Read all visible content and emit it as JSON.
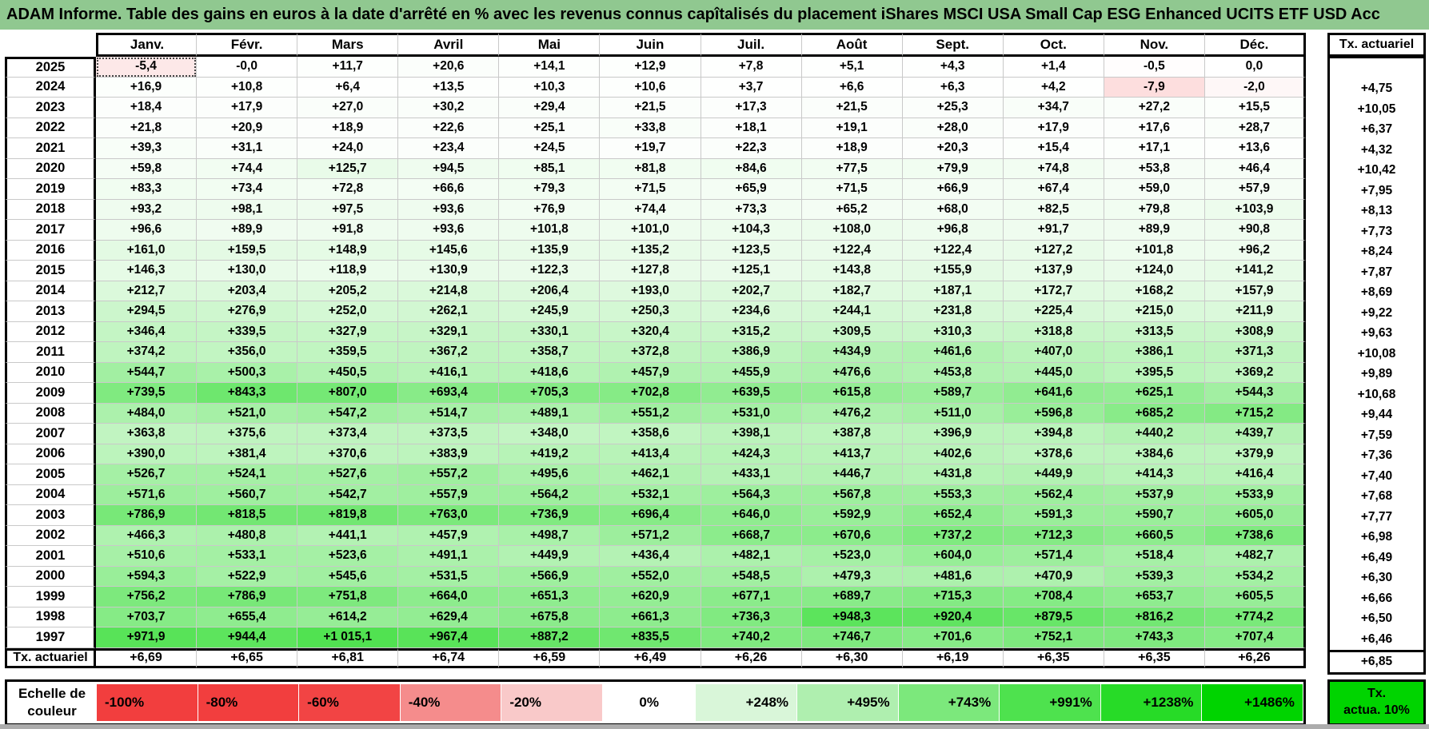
{
  "title": "ADAM Informe. Table des gains en euros à la date d'arrêté en % avec les revenus connus capîtalisés du placement iShares MSCI USA Small Cap ESG Enhanced UCITS ETF USD Acc",
  "colors": {
    "title_bg": "#90C890",
    "grid_line": "#C9C9C9",
    "negative_full": "#F23E3E",
    "positive_full": "#00D400"
  },
  "chart_data": {
    "type": "heatmap",
    "title": "ADAM Informe. Table des gains en euros à la date d'arrêté en % avec les revenus connus capîtalisés du placement iShares MSCI USA Small Cap ESG Enhanced UCITS ETF USD Acc",
    "x_labels": [
      "Janv.",
      "Févr.",
      "Mars",
      "Avril",
      "Mai",
      "Juin",
      "Juil.",
      "Août",
      "Sept.",
      "Oct.",
      "Nov.",
      "Déc."
    ],
    "extra_column_header": "Tx. actuariel",
    "tx_row_label": "Tx. actuariel",
    "selected_cell": {
      "row": "2025",
      "col": "Janv."
    },
    "rows": [
      {
        "label": "2025",
        "values": [
          "-5,4",
          "-0,0",
          "+11,7",
          "+20,6",
          "+14,1",
          "+12,9",
          "+7,8",
          "+5,1",
          "+4,3",
          "+1,4",
          "-0,5",
          "0,0"
        ],
        "tx": ""
      },
      {
        "label": "2024",
        "values": [
          "+16,9",
          "+10,8",
          "+6,4",
          "+13,5",
          "+10,3",
          "+10,6",
          "+3,7",
          "+6,6",
          "+6,3",
          "+4,2",
          "-7,9",
          "-2,0"
        ],
        "tx": "+4,75"
      },
      {
        "label": "2023",
        "values": [
          "+18,4",
          "+17,9",
          "+27,0",
          "+30,2",
          "+29,4",
          "+21,5",
          "+17,3",
          "+21,5",
          "+25,3",
          "+34,7",
          "+27,2",
          "+15,5"
        ],
        "tx": "+10,05"
      },
      {
        "label": "2022",
        "values": [
          "+21,8",
          "+20,9",
          "+18,9",
          "+22,6",
          "+25,1",
          "+33,8",
          "+18,1",
          "+19,1",
          "+28,0",
          "+17,9",
          "+17,6",
          "+28,7"
        ],
        "tx": "+6,37"
      },
      {
        "label": "2021",
        "values": [
          "+39,3",
          "+31,1",
          "+24,0",
          "+23,4",
          "+24,5",
          "+19,7",
          "+22,3",
          "+18,9",
          "+20,3",
          "+15,4",
          "+17,1",
          "+13,6"
        ],
        "tx": "+4,32"
      },
      {
        "label": "2020",
        "values": [
          "+59,8",
          "+74,4",
          "+125,7",
          "+94,5",
          "+85,1",
          "+81,8",
          "+84,6",
          "+77,5",
          "+79,9",
          "+74,8",
          "+53,8",
          "+46,4"
        ],
        "tx": "+10,42"
      },
      {
        "label": "2019",
        "values": [
          "+83,3",
          "+73,4",
          "+72,8",
          "+66,6",
          "+79,3",
          "+71,5",
          "+65,9",
          "+71,5",
          "+66,9",
          "+67,4",
          "+59,0",
          "+57,9"
        ],
        "tx": "+7,95"
      },
      {
        "label": "2018",
        "values": [
          "+93,2",
          "+98,1",
          "+97,5",
          "+93,6",
          "+76,9",
          "+74,4",
          "+73,3",
          "+65,2",
          "+68,0",
          "+82,5",
          "+79,8",
          "+103,9"
        ],
        "tx": "+8,13"
      },
      {
        "label": "2017",
        "values": [
          "+96,6",
          "+89,9",
          "+91,8",
          "+93,6",
          "+101,8",
          "+101,0",
          "+104,3",
          "+108,0",
          "+96,8",
          "+91,7",
          "+89,9",
          "+90,8"
        ],
        "tx": "+7,73"
      },
      {
        "label": "2016",
        "values": [
          "+161,0",
          "+159,5",
          "+148,9",
          "+145,6",
          "+135,9",
          "+135,2",
          "+123,5",
          "+122,4",
          "+122,4",
          "+127,2",
          "+101,8",
          "+96,2"
        ],
        "tx": "+8,24"
      },
      {
        "label": "2015",
        "values": [
          "+146,3",
          "+130,0",
          "+118,9",
          "+130,9",
          "+122,3",
          "+127,8",
          "+125,1",
          "+143,8",
          "+155,9",
          "+137,9",
          "+124,0",
          "+141,2"
        ],
        "tx": "+7,87"
      },
      {
        "label": "2014",
        "values": [
          "+212,7",
          "+203,4",
          "+205,2",
          "+214,8",
          "+206,4",
          "+193,0",
          "+202,7",
          "+182,7",
          "+187,1",
          "+172,7",
          "+168,2",
          "+157,9"
        ],
        "tx": "+8,69"
      },
      {
        "label": "2013",
        "values": [
          "+294,5",
          "+276,9",
          "+252,0",
          "+262,1",
          "+245,9",
          "+250,3",
          "+234,6",
          "+244,1",
          "+231,8",
          "+225,4",
          "+215,0",
          "+211,9"
        ],
        "tx": "+9,22"
      },
      {
        "label": "2012",
        "values": [
          "+346,4",
          "+339,5",
          "+327,9",
          "+329,1",
          "+330,1",
          "+320,4",
          "+315,2",
          "+309,5",
          "+310,3",
          "+318,8",
          "+313,5",
          "+308,9"
        ],
        "tx": "+9,63"
      },
      {
        "label": "2011",
        "values": [
          "+374,2",
          "+356,0",
          "+359,5",
          "+367,2",
          "+358,7",
          "+372,8",
          "+386,9",
          "+434,9",
          "+461,6",
          "+407,0",
          "+386,1",
          "+371,3"
        ],
        "tx": "+10,08"
      },
      {
        "label": "2010",
        "values": [
          "+544,7",
          "+500,3",
          "+450,5",
          "+416,1",
          "+418,6",
          "+457,9",
          "+455,9",
          "+476,6",
          "+453,8",
          "+445,0",
          "+395,5",
          "+369,2"
        ],
        "tx": "+9,89"
      },
      {
        "label": "2009",
        "values": [
          "+739,5",
          "+843,3",
          "+807,0",
          "+693,4",
          "+705,3",
          "+702,8",
          "+639,5",
          "+615,8",
          "+589,7",
          "+641,6",
          "+625,1",
          "+544,3"
        ],
        "tx": "+10,68"
      },
      {
        "label": "2008",
        "values": [
          "+484,0",
          "+521,0",
          "+547,2",
          "+514,7",
          "+489,1",
          "+551,2",
          "+531,0",
          "+476,2",
          "+511,0",
          "+596,8",
          "+685,2",
          "+715,2"
        ],
        "tx": "+9,44"
      },
      {
        "label": "2007",
        "values": [
          "+363,8",
          "+375,6",
          "+373,4",
          "+373,5",
          "+348,0",
          "+358,6",
          "+398,1",
          "+387,8",
          "+396,9",
          "+394,8",
          "+440,2",
          "+439,7"
        ],
        "tx": "+7,59"
      },
      {
        "label": "2006",
        "values": [
          "+390,0",
          "+381,4",
          "+370,6",
          "+383,9",
          "+419,2",
          "+413,4",
          "+424,3",
          "+413,7",
          "+402,6",
          "+378,6",
          "+384,6",
          "+379,9"
        ],
        "tx": "+7,36"
      },
      {
        "label": "2005",
        "values": [
          "+526,7",
          "+524,1",
          "+527,6",
          "+557,2",
          "+495,6",
          "+462,1",
          "+433,1",
          "+446,7",
          "+431,8",
          "+449,9",
          "+414,3",
          "+416,4"
        ],
        "tx": "+7,40"
      },
      {
        "label": "2004",
        "values": [
          "+571,6",
          "+560,7",
          "+542,7",
          "+557,9",
          "+564,2",
          "+532,1",
          "+564,3",
          "+567,8",
          "+553,3",
          "+562,4",
          "+537,9",
          "+533,9"
        ],
        "tx": "+7,68"
      },
      {
        "label": "2003",
        "values": [
          "+786,9",
          "+818,5",
          "+819,8",
          "+763,0",
          "+736,9",
          "+696,4",
          "+646,0",
          "+592,9",
          "+652,4",
          "+591,3",
          "+590,7",
          "+605,0"
        ],
        "tx": "+7,77"
      },
      {
        "label": "2002",
        "values": [
          "+466,3",
          "+480,8",
          "+441,1",
          "+457,9",
          "+498,7",
          "+571,2",
          "+668,7",
          "+670,6",
          "+737,2",
          "+712,3",
          "+660,5",
          "+738,6"
        ],
        "tx": "+6,98"
      },
      {
        "label": "2001",
        "values": [
          "+510,6",
          "+533,1",
          "+523,6",
          "+491,1",
          "+449,9",
          "+436,4",
          "+482,1",
          "+523,0",
          "+604,0",
          "+571,4",
          "+518,4",
          "+482,7"
        ],
        "tx": "+6,49"
      },
      {
        "label": "2000",
        "values": [
          "+594,3",
          "+522,9",
          "+545,6",
          "+531,5",
          "+566,9",
          "+552,0",
          "+548,5",
          "+479,3",
          "+481,6",
          "+470,9",
          "+539,3",
          "+534,2"
        ],
        "tx": "+6,30"
      },
      {
        "label": "1999",
        "values": [
          "+756,2",
          "+786,9",
          "+751,8",
          "+664,0",
          "+651,3",
          "+620,9",
          "+677,1",
          "+689,7",
          "+715,3",
          "+708,4",
          "+653,7",
          "+605,5"
        ],
        "tx": "+6,66"
      },
      {
        "label": "1998",
        "values": [
          "+703,7",
          "+655,4",
          "+614,2",
          "+629,4",
          "+675,8",
          "+661,3",
          "+736,3",
          "+948,3",
          "+920,4",
          "+879,5",
          "+816,2",
          "+774,2"
        ],
        "tx": "+6,50"
      },
      {
        "label": "1997",
        "values": [
          "+971,9",
          "+944,4",
          "+1 015,1",
          "+967,4",
          "+887,2",
          "+835,5",
          "+740,2",
          "+746,7",
          "+701,6",
          "+752,1",
          "+743,3",
          "+707,4"
        ],
        "tx": "+6,46"
      },
      {
        "label": "Tx. actuariel",
        "values": [
          "+6,69",
          "+6,65",
          "+6,81",
          "+6,74",
          "+6,59",
          "+6,49",
          "+6,26",
          "+6,30",
          "+6,19",
          "+6,35",
          "+6,35",
          "+6,26"
        ],
        "tx": "+6,85"
      }
    ],
    "color_scale": {
      "label_line1": "Echelle de",
      "label_line2": "couleur",
      "stops": [
        {
          "label": "-100%",
          "color": "#F23E3E",
          "align": "left"
        },
        {
          "label": "-80%",
          "color": "#F23E3E",
          "align": "left"
        },
        {
          "label": "-60%",
          "color": "#F24444",
          "align": "left"
        },
        {
          "label": "-40%",
          "color": "#F58C8C",
          "align": "left"
        },
        {
          "label": "-20%",
          "color": "#F9C9C9",
          "align": "left"
        },
        {
          "label": "0%",
          "color": "#FFFFFF",
          "align": "center"
        },
        {
          "label": "+248%",
          "color": "#D9F6D9",
          "align": "right"
        },
        {
          "label": "+495%",
          "color": "#AFEFAF",
          "align": "right"
        },
        {
          "label": "+743%",
          "color": "#7CE87C",
          "align": "right"
        },
        {
          "label": "+991%",
          "color": "#4EE24E",
          "align": "right"
        },
        {
          "label": "+1238%",
          "color": "#27DB27",
          "align": "right"
        },
        {
          "label": "+1486%",
          "color": "#00D400",
          "align": "right"
        }
      ],
      "tx_cell": {
        "label_line1": "Tx.",
        "label_line2": "actua. 10%",
        "color": "#00D400"
      }
    }
  }
}
